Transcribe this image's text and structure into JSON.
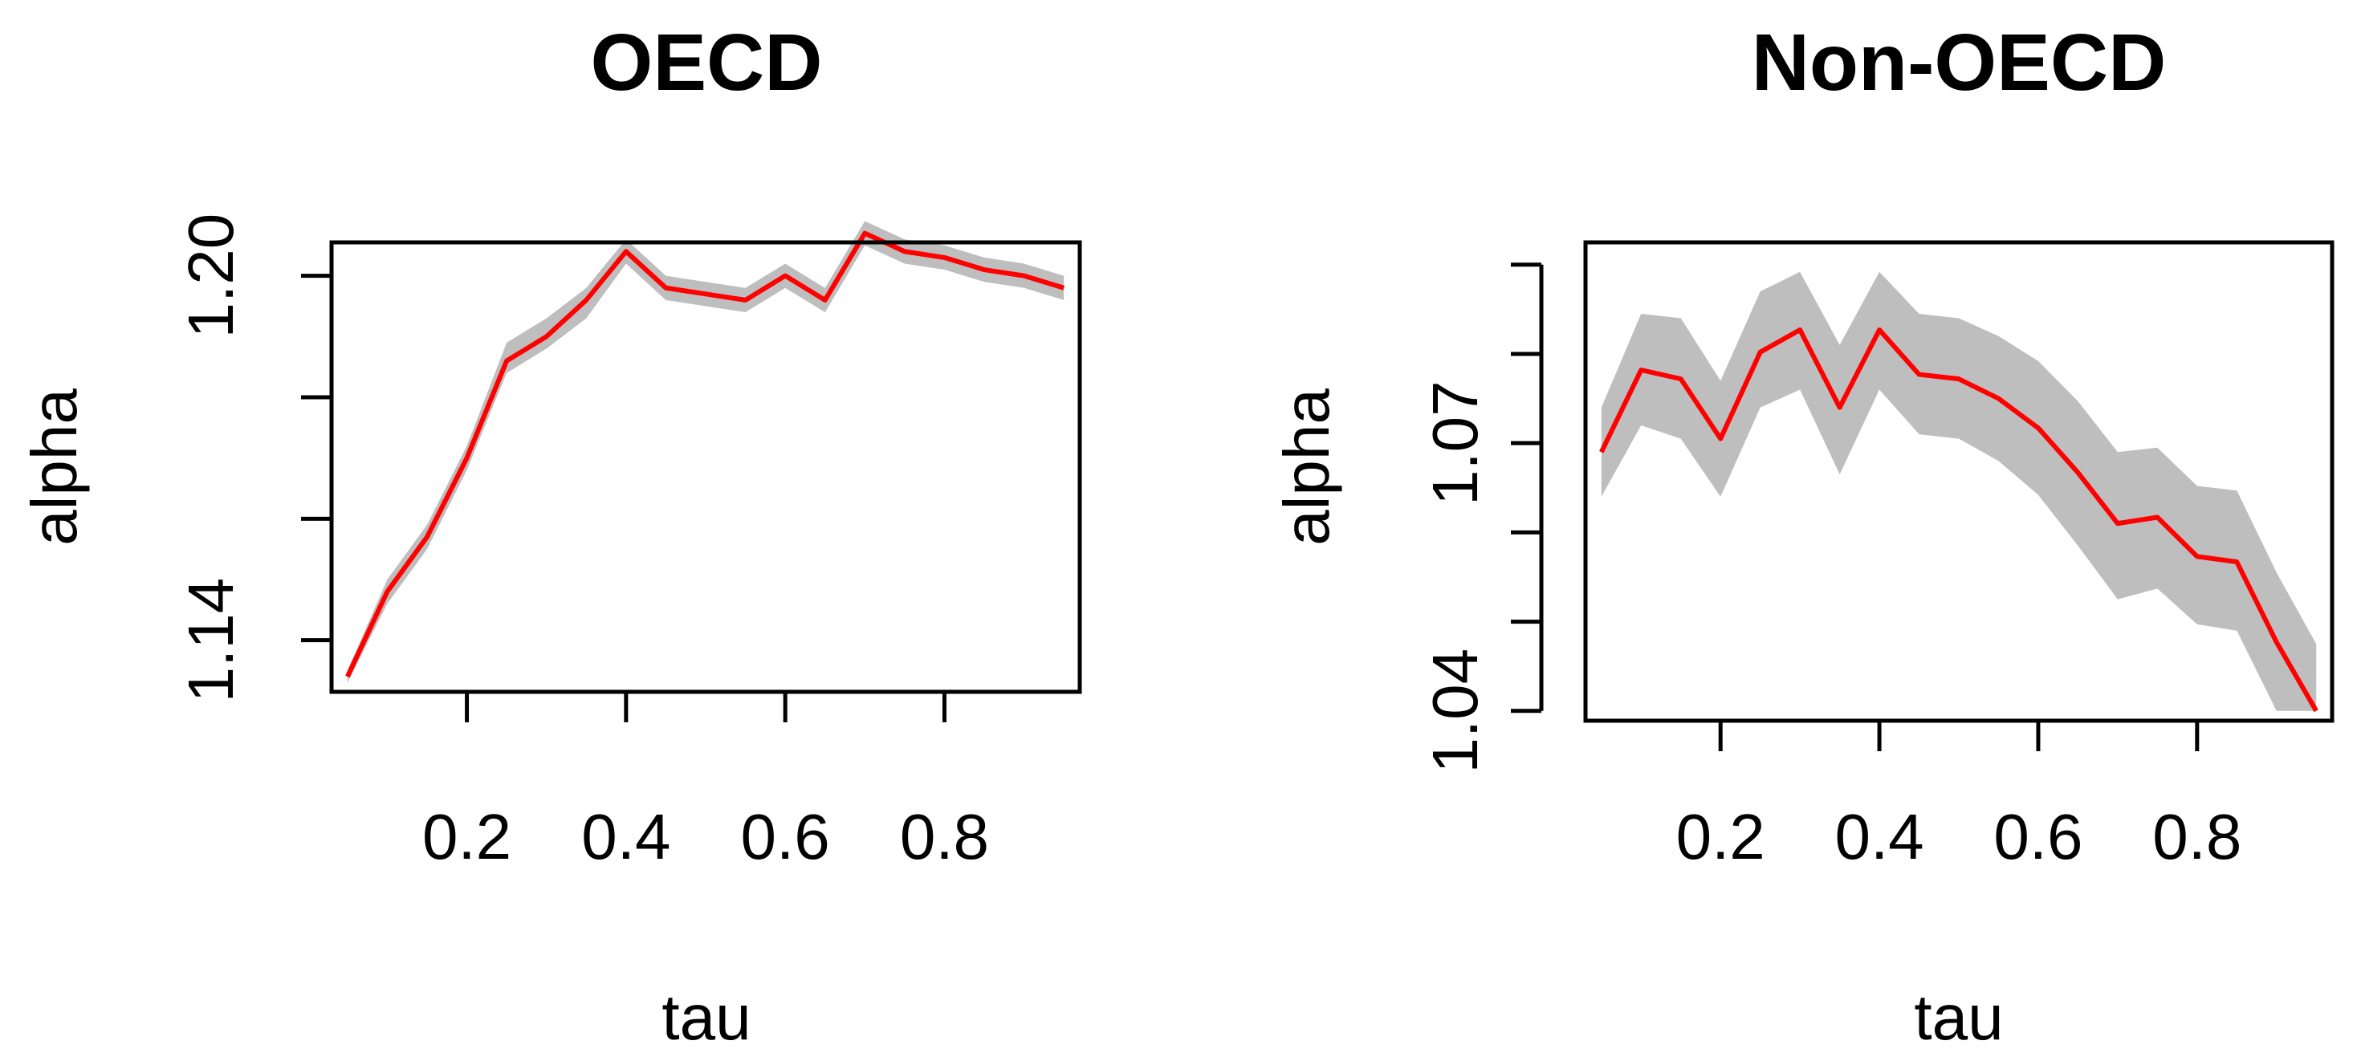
{
  "colors": {
    "band": "#bebebe",
    "line": "#ff0000",
    "axis": "#000000"
  },
  "chart_data": [
    {
      "type": "line",
      "title": "OECD",
      "xlabel": "tau",
      "ylabel": "alpha",
      "xlim": [
        0.03,
        0.97
      ],
      "ylim": [
        1.1315,
        1.2055
      ],
      "xticks": [
        0.2,
        0.4,
        0.6,
        0.8
      ],
      "xtick_labels": [
        "0.2",
        "0.4",
        "0.6",
        "0.8"
      ],
      "yticks": [
        1.14,
        1.16,
        1.18,
        1.2
      ],
      "ytick_labels": [
        "1.14",
        "",
        "",
        "1.20"
      ],
      "grid": false,
      "x": [
        0.05,
        0.1,
        0.15,
        0.2,
        0.25,
        0.3,
        0.35,
        0.4,
        0.45,
        0.5,
        0.55,
        0.6,
        0.65,
        0.7,
        0.75,
        0.8,
        0.85,
        0.9,
        0.95
      ],
      "series": [
        {
          "values": [
            1.134,
            1.148,
            1.157,
            1.17,
            1.186,
            1.19,
            1.196,
            1.204,
            1.198,
            1.197,
            1.196,
            1.2,
            1.196,
            1.207,
            1.204,
            1.203,
            1.201,
            1.2,
            1.198
          ]
        }
      ],
      "band": {
        "lower": [
          1.133,
          1.146,
          1.155,
          1.168,
          1.184,
          1.188,
          1.193,
          1.202,
          1.196,
          1.195,
          1.194,
          1.198,
          1.194,
          1.205,
          1.202,
          1.201,
          1.199,
          1.198,
          1.196
        ],
        "upper": [
          1.135,
          1.15,
          1.159,
          1.172,
          1.189,
          1.193,
          1.198,
          1.206,
          1.2,
          1.199,
          1.198,
          1.202,
          1.198,
          1.209,
          1.206,
          1.205,
          1.203,
          1.202,
          1.2
        ]
      }
    },
    {
      "type": "line",
      "title": "Non-OECD",
      "xlabel": "tau",
      "ylabel": "alpha",
      "xlim": [
        0.03,
        0.97
      ],
      "ylim": [
        1.0389,
        1.0925
      ],
      "xticks": [
        0.2,
        0.4,
        0.6,
        0.8
      ],
      "xtick_labels": [
        "0.2",
        "0.4",
        "0.6",
        "0.8"
      ],
      "yticks": [
        1.04,
        1.05,
        1.06,
        1.07,
        1.08,
        1.09
      ],
      "ytick_labels": [
        "1.04",
        "",
        "",
        "1.07",
        "",
        ""
      ],
      "grid": false,
      "x": [
        0.05,
        0.1,
        0.15,
        0.2,
        0.25,
        0.3,
        0.35,
        0.4,
        0.45,
        0.5,
        0.55,
        0.6,
        0.65,
        0.7,
        0.75,
        0.8,
        0.85,
        0.9,
        0.95
      ],
      "series": [
        {
          "values": [
            1.069,
            1.0782,
            1.0772,
            1.0705,
            1.0802,
            1.0827,
            1.074,
            1.0827,
            1.0777,
            1.0772,
            1.075,
            1.0717,
            1.0667,
            1.061,
            1.0617,
            1.0573,
            1.0567,
            1.0477,
            1.04
          ]
        }
      ],
      "band": {
        "lower": [
          1.064,
          1.072,
          1.0705,
          1.064,
          1.074,
          1.076,
          1.0665,
          1.076,
          1.071,
          1.0705,
          1.068,
          1.0642,
          1.0585,
          1.0525,
          1.0537,
          1.0497,
          1.049,
          1.04,
          1.04
        ],
        "upper": [
          1.074,
          1.0845,
          1.084,
          1.077,
          1.087,
          1.0892,
          1.081,
          1.0892,
          1.0845,
          1.084,
          1.082,
          1.0792,
          1.0747,
          1.069,
          1.0695,
          1.0652,
          1.0647,
          1.0555,
          1.0475
        ]
      }
    }
  ]
}
